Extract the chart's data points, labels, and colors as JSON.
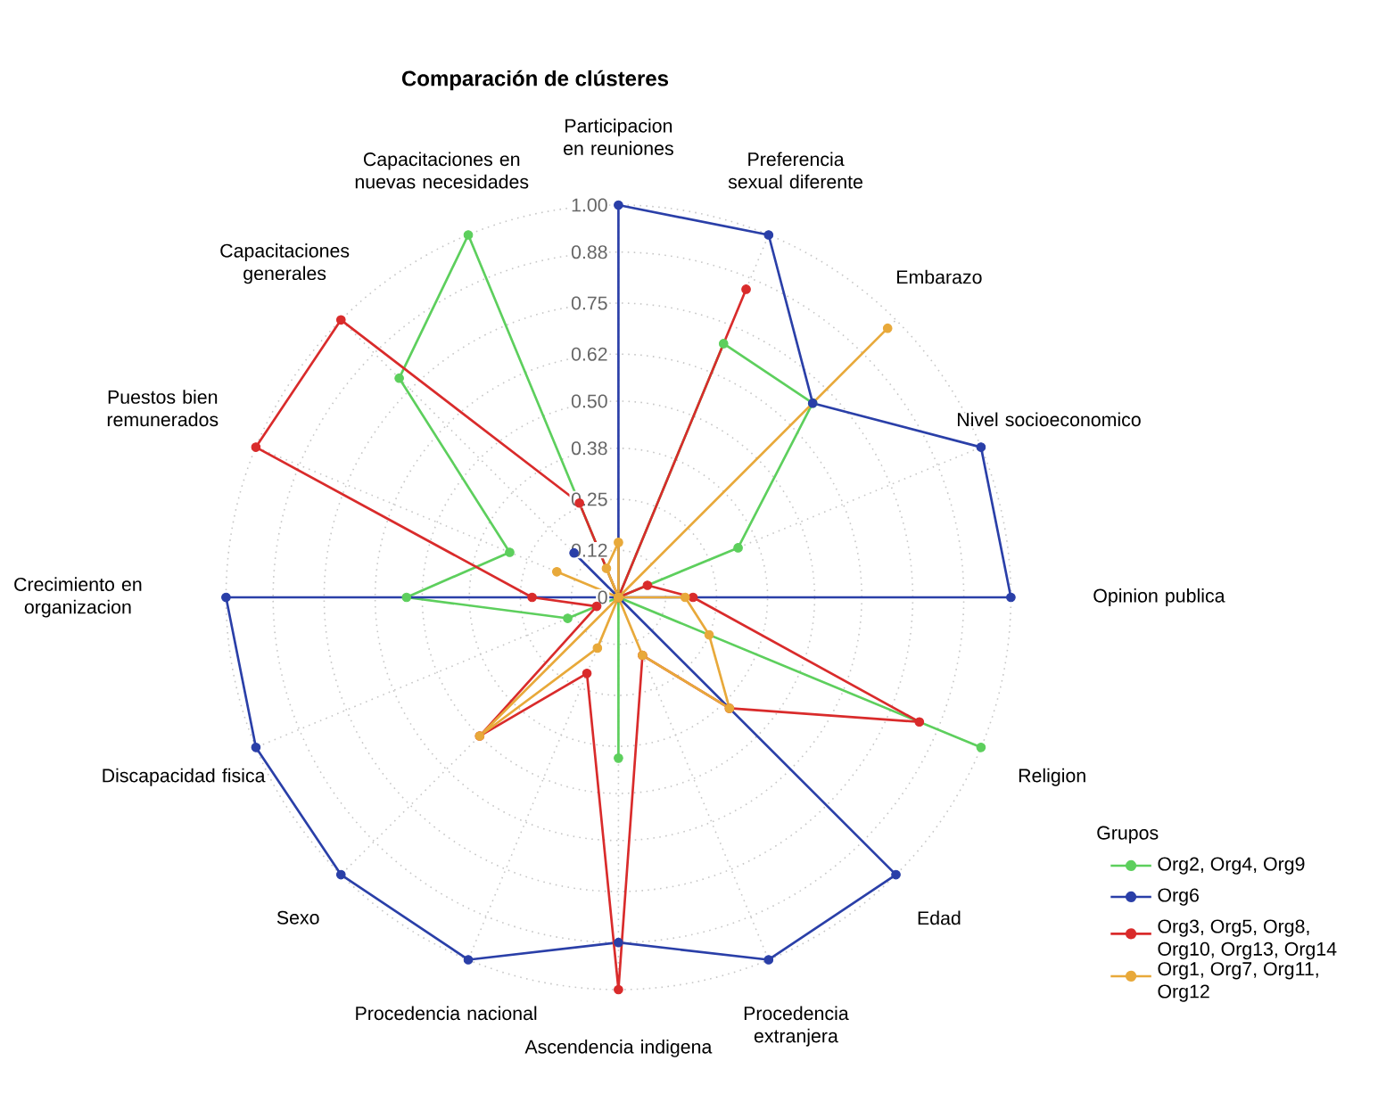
{
  "chart_data": {
    "type": "radar",
    "title": "Comparación de clústeres",
    "categories": [
      "Participacion en reuniones",
      "Preferencia sexual diferente",
      "Embarazo",
      "Nivel socioeconomico",
      "Opinion publica",
      "Religion",
      "Edad",
      "Procedencia extranjera",
      "Ascendencia indigena",
      "Procedencia nacional",
      "Sexo",
      "Discapacidad fisica",
      "Crecimiento en organizacion",
      "Puestos bien remunerados",
      "Capacitaciones generales",
      "Capacitaciones en nuevas necesidades"
    ],
    "series": [
      {
        "name": "Org2, Org4, Org9",
        "color": "#5dcf5d",
        "values": [
          0,
          0.7,
          0.7,
          0.33,
          0,
          1.0,
          0,
          0,
          0.41,
          0,
          0,
          0.14,
          0.54,
          0.3,
          0.79,
          1.0
        ]
      },
      {
        "name": "Org6",
        "color": "#2a3fa8",
        "values": [
          1.0,
          1.0,
          0.7,
          1.0,
          1.0,
          0,
          1.0,
          1.0,
          0.88,
          1.0,
          1.0,
          1.0,
          1.0,
          0,
          0.16,
          0
        ]
      },
      {
        "name": "Org3, Org5, Org8, Org10, Org13, Org14",
        "color": "#d92b2b",
        "values": [
          0,
          0.85,
          0,
          0.08,
          0.19,
          0.83,
          0.4,
          0.16,
          1.0,
          0.21,
          0.5,
          0.06,
          0.22,
          1.0,
          1.0,
          0.26
        ]
      },
      {
        "name": "Org1, Org7, Org11, Org12",
        "color": "#e8a93a",
        "values": [
          0.14,
          0,
          0.97,
          0,
          0.17,
          0.25,
          0.4,
          0.16,
          0,
          0.14,
          0.5,
          0,
          0,
          0.17,
          0,
          0.08
        ]
      }
    ],
    "ylim": [
      0,
      1
    ],
    "yticks": [
      0,
      0.12,
      0.25,
      0.38,
      {
        "value": 0.5,
        "label": "0.50"
      },
      0.62,
      0.75,
      0.88,
      {
        "value": 1.0,
        "label": "1.00"
      }
    ],
    "legend_title": "Grupos",
    "legend": "right",
    "grid": true,
    "marker": "circle",
    "line_style": "solid"
  }
}
